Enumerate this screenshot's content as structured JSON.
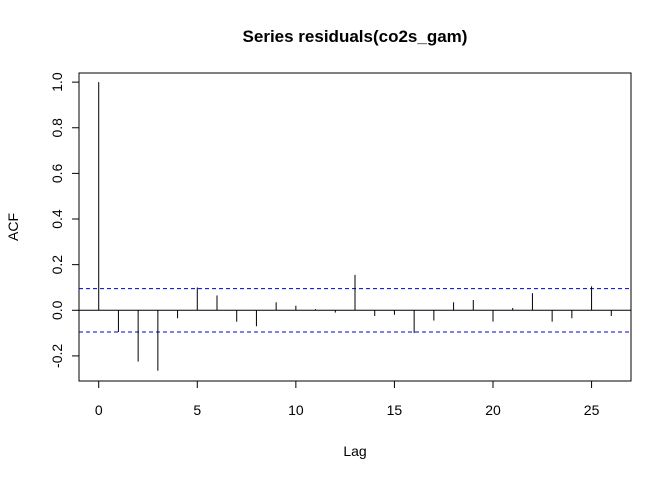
{
  "chart_data": {
    "type": "bar",
    "title": "Series  residuals(co2s_gam)",
    "xlabel": "Lag",
    "ylabel": "ACF",
    "xlim": [
      -1.0,
      27.0
    ],
    "ylim": [
      -0.31,
      1.04
    ],
    "x_ticks": [
      0,
      5,
      10,
      15,
      20,
      25
    ],
    "y_ticks": [
      -0.2,
      0.0,
      0.2,
      0.4,
      0.6,
      0.8,
      1.0
    ],
    "x_tick_labels": [
      "0",
      "5",
      "10",
      "15",
      "20",
      "25"
    ],
    "y_tick_labels": [
      "-0.2",
      "0.0",
      "0.2",
      "0.4",
      "0.6",
      "0.8",
      "1.0"
    ],
    "lags": [
      0,
      1,
      2,
      3,
      4,
      5,
      6,
      7,
      8,
      9,
      10,
      11,
      12,
      13,
      14,
      15,
      16,
      17,
      18,
      19,
      20,
      21,
      22,
      23,
      24,
      25,
      26
    ],
    "acf": [
      1.0,
      -0.095,
      -0.225,
      -0.265,
      -0.035,
      0.1,
      0.065,
      -0.05,
      -0.07,
      0.035,
      0.02,
      0.005,
      -0.01,
      0.155,
      -0.025,
      -0.02,
      -0.1,
      -0.045,
      0.035,
      0.045,
      -0.05,
      0.01,
      0.075,
      -0.05,
      -0.035,
      0.105,
      -0.025
    ],
    "confidence_bound": 0.095,
    "colors": {
      "bars": "#000000",
      "bounds": "#0000cd",
      "zero_line": "#000000"
    }
  }
}
